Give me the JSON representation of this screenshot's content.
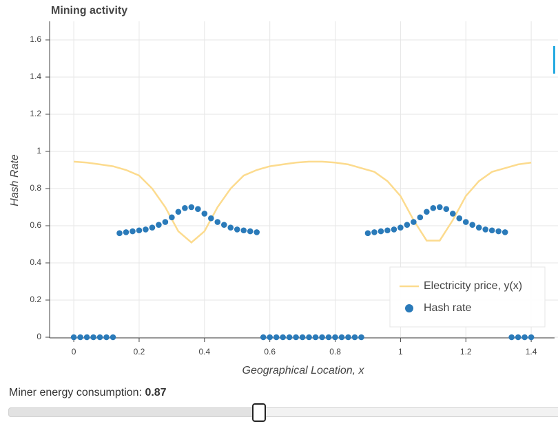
{
  "chart_data": {
    "type": "line",
    "title": "Mining activity",
    "x_label": "Geographical Location, x",
    "y_label": "Hash Rate",
    "xlim": [
      -0.074,
      1.482
    ],
    "ylim": [
      0,
      1.7
    ],
    "xticks": [
      0,
      0.2,
      0.4,
      0.6,
      0.8,
      1,
      1.2,
      1.4
    ],
    "yticks": [
      0,
      0.2,
      0.4,
      0.6,
      0.8,
      1,
      1.2,
      1.4,
      1.6
    ],
    "grid": true,
    "legend": "bottom_right",
    "series": [
      {
        "name": "Electricity price, y(x)",
        "type": "line",
        "color": "#fcdb8e",
        "x": [
          0,
          0.04,
          0.08,
          0.12,
          0.16,
          0.2,
          0.24,
          0.28,
          0.32,
          0.36,
          0.4,
          0.44,
          0.48,
          0.52,
          0.56,
          0.6,
          0.64,
          0.68,
          0.72,
          0.76,
          0.8,
          0.84,
          0.88,
          0.92,
          0.96,
          1,
          1.04,
          1.08,
          1.12,
          1.16,
          1.2,
          1.24,
          1.28,
          1.32,
          1.36,
          1.4
        ],
        "values": [
          0.945,
          0.94,
          0.93,
          0.92,
          0.9,
          0.87,
          0.8,
          0.7,
          0.57,
          0.51,
          0.57,
          0.7,
          0.8,
          0.87,
          0.9,
          0.92,
          0.93,
          0.94,
          0.945,
          0.945,
          0.94,
          0.93,
          0.91,
          0.89,
          0.84,
          0.76,
          0.63,
          0.52,
          0.52,
          0.63,
          0.76,
          0.84,
          0.89,
          0.91,
          0.93,
          0.94
        ]
      },
      {
        "name": "Hash rate",
        "type": "scatter",
        "color": "#2a7ab9",
        "x": [
          0,
          0.02,
          0.04,
          0.06,
          0.08,
          0.1,
          0.12,
          0.14,
          0.16,
          0.18,
          0.2,
          0.22,
          0.24,
          0.26,
          0.28,
          0.3,
          0.32,
          0.34,
          0.36,
          0.38,
          0.4,
          0.42,
          0.44,
          0.46,
          0.48,
          0.5,
          0.52,
          0.54,
          0.56,
          0.58,
          0.6,
          0.62,
          0.64,
          0.66,
          0.68,
          0.7,
          0.72,
          0.74,
          0.76,
          0.78,
          0.8,
          0.82,
          0.84,
          0.86,
          0.88,
          0.9,
          0.92,
          0.94,
          0.96,
          0.98,
          1,
          1.02,
          1.04,
          1.06,
          1.08,
          1.1,
          1.12,
          1.14,
          1.16,
          1.18,
          1.2,
          1.22,
          1.24,
          1.26,
          1.28,
          1.3,
          1.32,
          1.34,
          1.36,
          1.38,
          1.4
        ],
        "values": [
          0,
          0,
          0,
          0,
          0,
          0,
          0,
          0.56,
          0.565,
          0.57,
          0.575,
          0.58,
          0.59,
          0.605,
          0.62,
          0.645,
          0.675,
          0.695,
          0.7,
          0.69,
          0.665,
          0.64,
          0.62,
          0.605,
          0.59,
          0.58,
          0.575,
          0.57,
          0.565,
          0,
          0,
          0,
          0,
          0,
          0,
          0,
          0,
          0,
          0,
          0,
          0,
          0,
          0,
          0,
          0,
          0.56,
          0.565,
          0.57,
          0.575,
          0.58,
          0.59,
          0.605,
          0.62,
          0.645,
          0.675,
          0.695,
          0.7,
          0.69,
          0.665,
          0.64,
          0.62,
          0.605,
          0.59,
          0.58,
          0.575,
          0.57,
          0.565,
          0,
          0,
          0,
          0
        ]
      }
    ]
  },
  "slider": {
    "title": "Miner energy consumption:",
    "value": 0.87
  }
}
